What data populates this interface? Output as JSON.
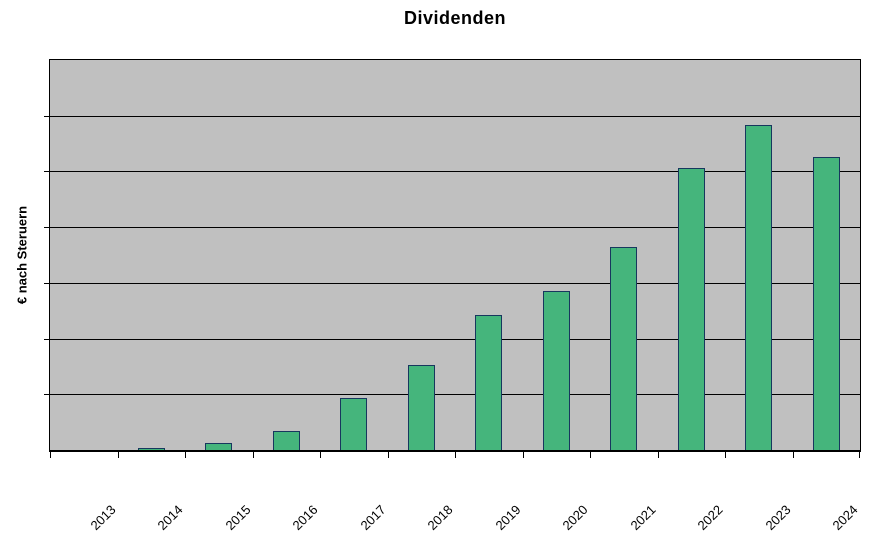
{
  "chart_data": {
    "type": "bar",
    "title": "Dividenden",
    "xlabel": "",
    "ylabel": "€ nach Steruern",
    "categories": [
      "2013",
      "2014",
      "2015",
      "2016",
      "2017",
      "2018",
      "2019",
      "2020",
      "2021",
      "2022",
      "2023",
      "2024"
    ],
    "values": [
      0,
      0.04,
      0.12,
      0.34,
      0.93,
      1.53,
      2.42,
      2.85,
      3.64,
      5.06,
      5.83,
      5.26
    ],
    "ylim": [
      0,
      7
    ],
    "y_tick_labels_visible": false,
    "grid": "horizontal",
    "legend": "none",
    "colors": {
      "bar_fill": "#45b57c",
      "bar_border": "#17375e",
      "plot_background": "#c0c0c0",
      "gridline": "#000000",
      "text": "#000000",
      "page_background": "#ffffff"
    }
  }
}
